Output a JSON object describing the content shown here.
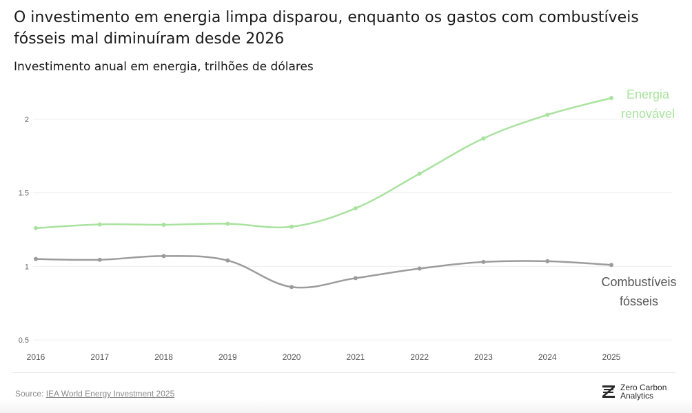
{
  "header": {
    "title": "O investimento em energia limpa disparou, enquanto os gastos com combustíveis fósseis mal diminuíram desde 2026",
    "subtitle": "Investimento anual em energia, trilhões de dólares"
  },
  "chart_data": {
    "type": "line",
    "title": "O investimento em energia limpa disparou, enquanto os gastos com combustíveis fósseis mal diminuíram desde 2026",
    "subtitle": "Investimento anual em energia, trilhões de dólares",
    "xlabel": "",
    "ylabel": "",
    "x": [
      "2016",
      "2017",
      "2018",
      "2019",
      "2020",
      "2021",
      "2022",
      "2023",
      "2024",
      "2025"
    ],
    "ylim": [
      0.5,
      2.2
    ],
    "yticks": [
      "0.5",
      "1",
      "1.5",
      "2"
    ],
    "grid": true,
    "series": [
      {
        "name": "Energia renovável",
        "label_lines": [
          "Energia",
          "renovável"
        ],
        "color": "#a8e29d",
        "values": [
          1.26,
          1.285,
          1.283,
          1.29,
          1.27,
          1.395,
          1.63,
          1.87,
          2.03,
          2.145
        ]
      },
      {
        "name": "Combustíveis fósseis",
        "label_lines": [
          "Combustíveis",
          "fósseis"
        ],
        "color": "#9b9b9b",
        "values": [
          1.05,
          1.045,
          1.07,
          1.04,
          0.86,
          0.92,
          0.985,
          1.03,
          1.035,
          1.01
        ]
      }
    ]
  },
  "footer": {
    "source_prefix": "Source:",
    "source_link": "IEA World Energy Investment 2025",
    "logo_line1": "Zero Carbon",
    "logo_line2": "Analytics",
    "logo_icon": "zca-logo-icon"
  }
}
